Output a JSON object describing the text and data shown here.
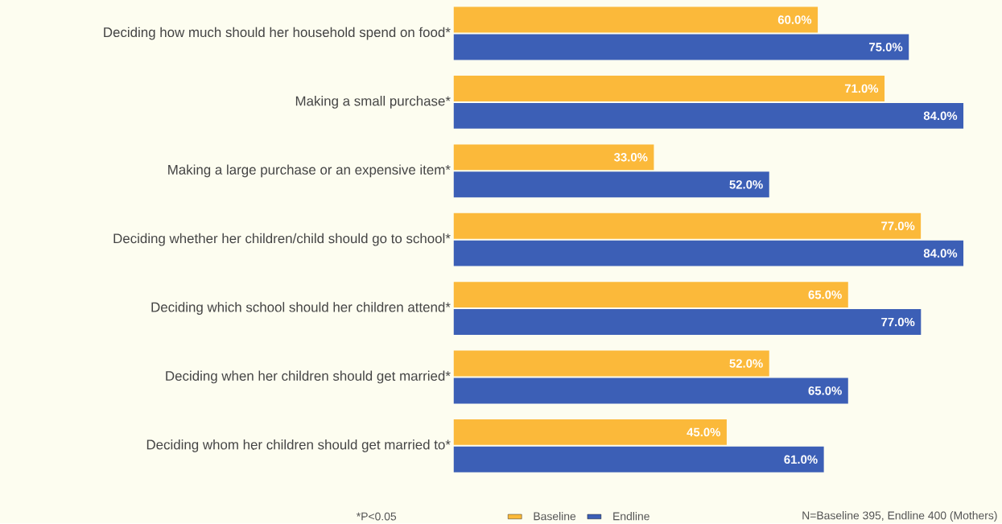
{
  "chart_data": {
    "type": "bar",
    "orientation": "horizontal",
    "categories": [
      "Deciding how much should her household spend on food*",
      "Making a small purchase*",
      "Making a large purchase or an expensive item*",
      "Deciding whether her children/child should go to school*",
      "Deciding which school should her children attend*",
      "Deciding when her children should get married*",
      "Deciding whom her children should get married to*"
    ],
    "series": [
      {
        "name": "Baseline",
        "color": "#fbb93a",
        "values": [
          60.0,
          71.0,
          33.0,
          77.0,
          65.0,
          52.0,
          45.0
        ],
        "value_labels": [
          "60.0%",
          "71.0%",
          "33.0%",
          "77.0%",
          "65.0%",
          "52.0%",
          "45.0%"
        ]
      },
      {
        "name": "Endline",
        "color": "#3c5fb6",
        "values": [
          75.0,
          84.0,
          52.0,
          84.0,
          77.0,
          65.0,
          61.0
        ],
        "value_labels": [
          "75.0%",
          "84.0%",
          "52.0%",
          "84.0%",
          "77.0%",
          "65.0%",
          "61.0%"
        ]
      }
    ],
    "legend": "bottom",
    "tick_labels": "y",
    "annotations": [
      "*P<0.05",
      "N=Baseline 395, Endline 400 (Mothers)"
    ]
  }
}
